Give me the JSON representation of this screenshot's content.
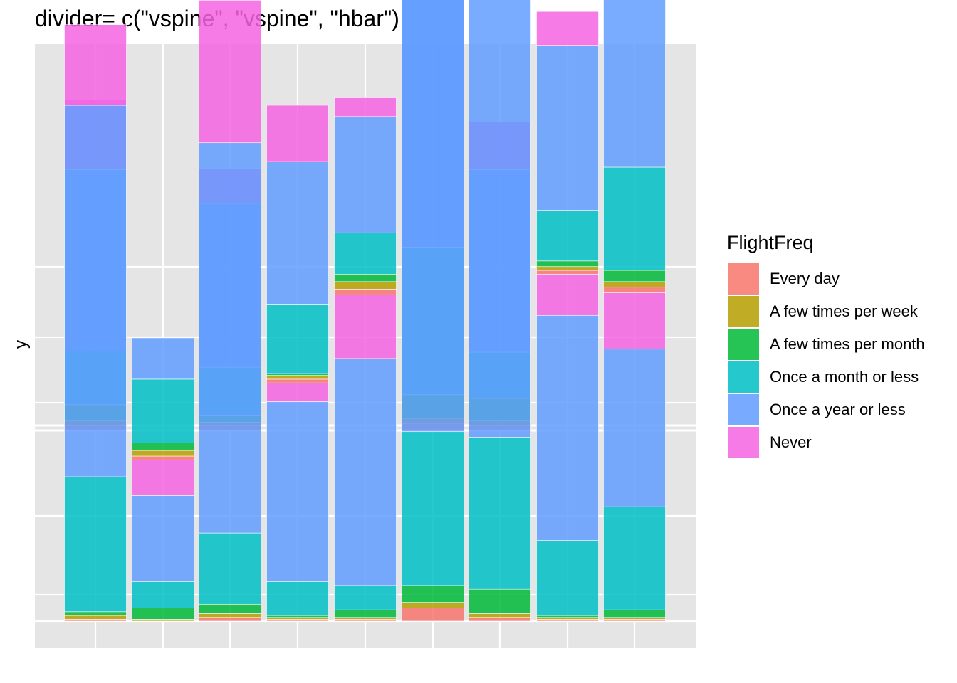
{
  "chart_data": {
    "type": "bar",
    "title": "divider= c(\"vspine\", \"vspine\", \"hbar\")",
    "xlabel": "",
    "ylabel": "y",
    "grid": true,
    "legend_position": "right",
    "legend": {
      "title": "FlightFreq",
      "entries": [
        {
          "label": "Every day",
          "color": "#F8766D"
        },
        {
          "label": "A few times per week",
          "color": "#B79F00"
        },
        {
          "label": "A few times per month",
          "color": "#00BA38"
        },
        {
          "label": "Once a month or less",
          "color": "#00BFC4"
        },
        {
          "label": "Once a year or less",
          "color": "#619CFF"
        },
        {
          "label": "Never",
          "color": "#F564E3"
        }
      ]
    },
    "series_order": [
      "Every day",
      "A few times per week",
      "A few times per month",
      "Once a month or less",
      "Once a year or less",
      "Never"
    ],
    "panels": [
      {
        "name": "top",
        "ylim": [
          0,
          0.33
        ],
        "columns": [
          {
            "values": [
              0.003,
              0.004,
              0.013,
              0.043,
              0.145,
              0.056
            ]
          },
          {
            "values": [
              0,
              0,
              0,
              0,
              0,
              0
            ]
          },
          {
            "values": [
              0.003,
              0.003,
              0.005,
              0.039,
              0.131,
              0.028
            ]
          },
          {
            "values": [
              0,
              0,
              0,
              0,
              0,
              0
            ]
          },
          {
            "values": [
              0,
              0,
              0,
              0,
              0,
              0
            ]
          },
          {
            "values": [
              0.005,
              0.004,
              0.019,
              0.118,
              0.211,
              0.059
            ]
          },
          {
            "values": [
              0.003,
              0.004,
              0.018,
              0.037,
              0.146,
              0.038
            ]
          },
          {
            "values": [
              0,
              0,
              0,
              0,
              0,
              0
            ]
          },
          {
            "values": [
              0,
              0,
              0,
              0,
              0,
              0
            ]
          }
        ]
      },
      {
        "name": "bottom",
        "ylim": [
          0,
          0.33
        ],
        "columns": [
          {
            "values": [
              0.001,
              0.002,
              0.002,
              0.072,
              0.198,
              0.043
            ]
          },
          {
            "values": [
              0,
              0.001,
              0.006,
              0.014,
              0.046,
              0.019,
              0.002,
              0.003,
              0.004,
              0.034,
              0.022
            ]
          },
          {
            "values": [
              0.002,
              0.002,
              0.005,
              0.038,
              0.208,
              0.076
            ]
          },
          {
            "values": [
              0.001,
              0.001,
              0.001,
              0.018,
              0.096,
              0.01,
              0.002,
              0.002,
              0.001,
              0.037,
              0.076,
              0.03
            ]
          },
          {
            "values": [
              0.001,
              0.001,
              0.004,
              0.013,
              0.121,
              0.034,
              0.003,
              0.004,
              0.004,
              0.022,
              0.062,
              0.01
            ]
          },
          {
            "values": [
              0.007,
              0.003,
              0.009,
              0.082,
              0.258,
              0.069
            ]
          },
          {
            "values": [
              0.002,
              0.002,
              0.013,
              0.081,
              0.24,
              0.064
            ]
          },
          {
            "values": [
              0.001,
              0.001,
              0.001,
              0.04,
              0.12,
              0.022,
              0.002,
              0.002,
              0.003,
              0.027,
              0.088,
              0.018
            ]
          },
          {
            "values": [
              0.001,
              0.001,
              0.004,
              0.055,
              0.084,
              0.03,
              0.003,
              0.003,
              0.006,
              0.055,
              0.128,
              0.026
            ]
          }
        ]
      }
    ]
  }
}
